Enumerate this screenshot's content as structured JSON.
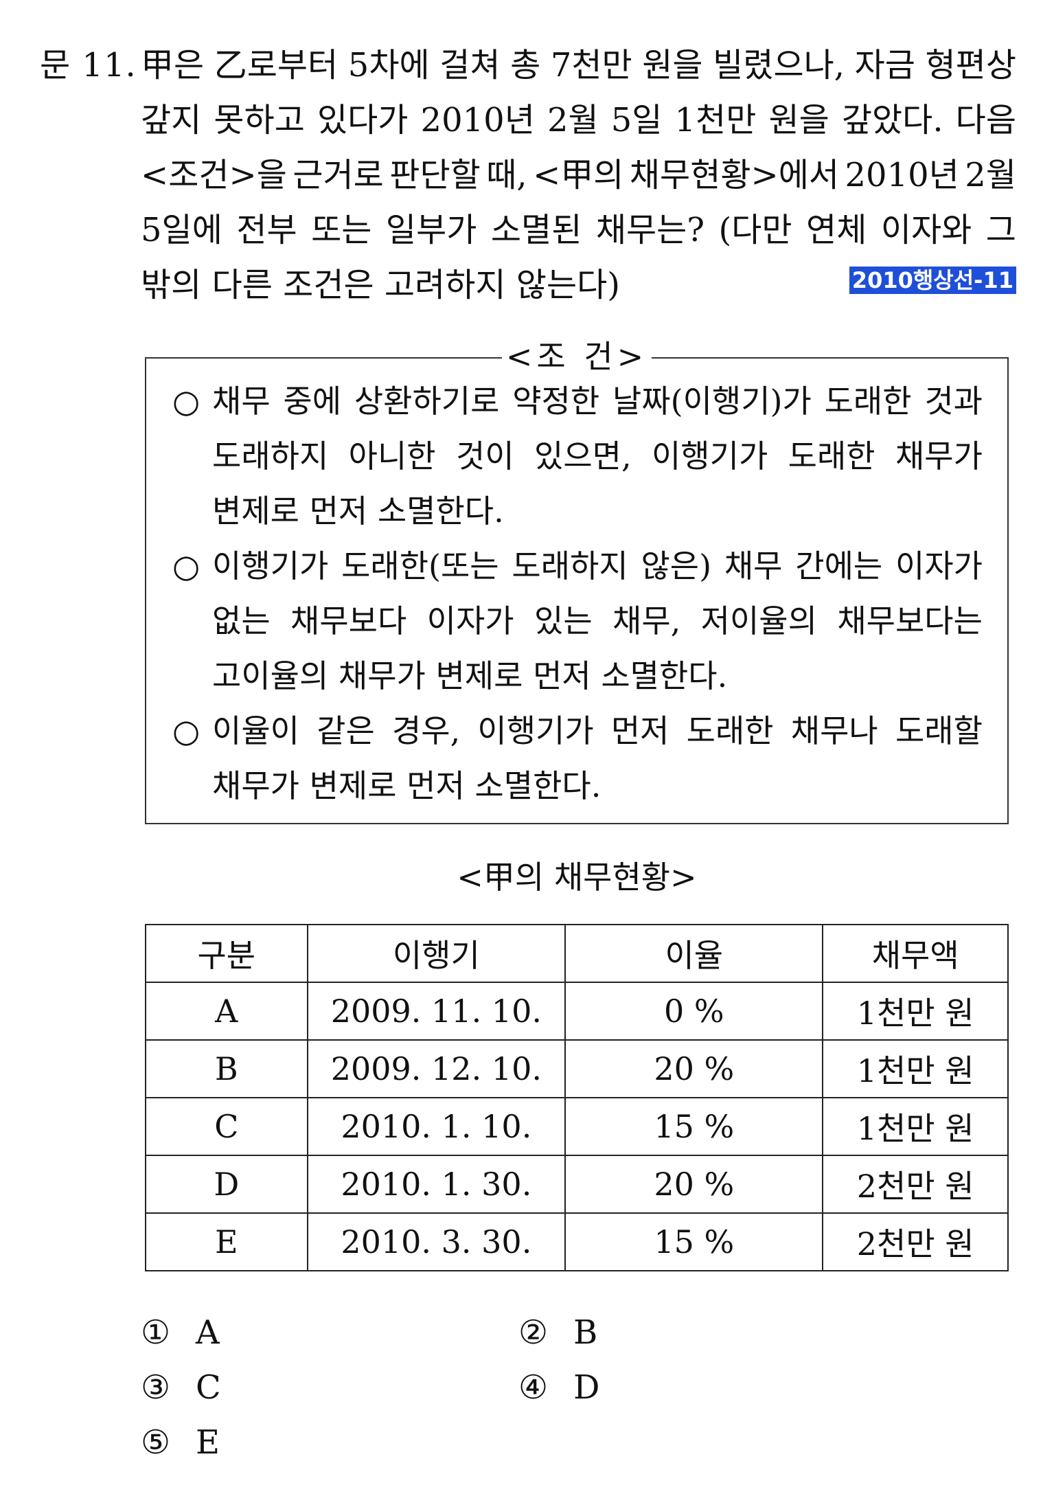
{
  "question": {
    "number": "문 11.",
    "lines": [
      [
        "甲은",
        "乙로부터",
        "5차에",
        "걸쳐",
        "총",
        "7천만",
        "원을",
        "빌렸으나,",
        "자금",
        "형편상"
      ],
      [
        "갚지",
        "못하고",
        "있다가",
        "2010년",
        "2월",
        "5일",
        "1천만",
        "원을",
        "갚았다.",
        "다음"
      ],
      [
        "<조건>을",
        "근거로",
        "판단할",
        "때,",
        "<甲의",
        "채무현황>에서",
        "2010년",
        "2월"
      ],
      [
        "5일에",
        "전부",
        "또는",
        "일부가",
        "소멸된",
        "채무는?",
        "(다만",
        "연체",
        "이자와",
        "그"
      ],
      [
        "밖의 다른 조건은 고려하지 않는다)"
      ]
    ],
    "tag": "2010행상선-11"
  },
  "conditions": {
    "title": "<조 건>",
    "bullet": "○",
    "lines": [
      {
        "type": "first",
        "words": [
          "채무",
          "중에",
          "상환하기로",
          "약정한",
          "날짜(이행기)가",
          "도래한",
          "것과"
        ]
      },
      {
        "type": "cont",
        "words": [
          "도래하지",
          "아니한",
          "것이",
          "있으면,",
          "이행기가",
          "도래한",
          "채무가"
        ]
      },
      {
        "type": "last",
        "text": "변제로 먼저 소멸한다."
      },
      {
        "type": "first",
        "words": [
          "이행기가",
          "도래한(또는",
          "도래하지",
          "않은)",
          "채무",
          "간에는",
          "이자가"
        ]
      },
      {
        "type": "cont",
        "words": [
          "없는",
          "채무보다",
          "이자가",
          "있는",
          "채무,",
          "저이율의",
          "채무보다는"
        ]
      },
      {
        "type": "last",
        "text": "고이율의 채무가 변제로 먼저 소멸한다."
      },
      {
        "type": "first",
        "words": [
          "이율이",
          "같은",
          "경우,",
          "이행기가",
          "먼저",
          "도래한",
          "채무나",
          "도래할"
        ]
      },
      {
        "type": "last",
        "text": "채무가 변제로 먼저 소멸한다."
      }
    ]
  },
  "debt_table": {
    "title": "<甲의 채무현황>",
    "headers": [
      "구분",
      "이행기",
      "이율",
      "채무액"
    ],
    "rows": [
      [
        "A",
        "2009. 11. 10.",
        "0 %",
        "1천만 원"
      ],
      [
        "B",
        "2009. 12. 10.",
        "20 %",
        "1천만 원"
      ],
      [
        "C",
        "2010. 1. 10.",
        "15 %",
        "1천만 원"
      ],
      [
        "D",
        "2010. 1. 30.",
        "20 %",
        "2천만 원"
      ],
      [
        "E",
        "2010. 3. 30.",
        "15 %",
        "2천만 원"
      ]
    ]
  },
  "choices": [
    {
      "mark": "①",
      "label": "A"
    },
    {
      "mark": "②",
      "label": "B"
    },
    {
      "mark": "③",
      "label": "C"
    },
    {
      "mark": "④",
      "label": "D"
    },
    {
      "mark": "⑤",
      "label": "E"
    }
  ]
}
